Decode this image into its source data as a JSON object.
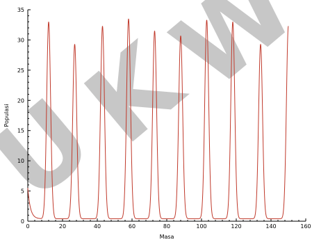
{
  "chart_data": {
    "type": "line",
    "xlabel": "Masa",
    "ylabel": "Populasi",
    "xlim": [
      0,
      160
    ],
    "ylim": [
      0,
      35
    ],
    "xticks": [
      0,
      20,
      40,
      60,
      80,
      100,
      120,
      140,
      160
    ],
    "yticks": [
      0,
      5,
      10,
      15,
      20,
      25,
      30,
      35
    ],
    "grid": false,
    "legend": "none",
    "series": [
      {
        "color": "#c0392b",
        "x_range": [
          0,
          150
        ],
        "start_value": 5.5,
        "baseline": 0.4,
        "peaks": [
          {
            "x": 12,
            "y": 33.0
          },
          {
            "x": 27,
            "y": 29.3
          },
          {
            "x": 43,
            "y": 32.3
          },
          {
            "x": 58,
            "y": 33.5
          },
          {
            "x": 73,
            "y": 31.5
          },
          {
            "x": 88,
            "y": 30.7
          },
          {
            "x": 103,
            "y": 33.3
          },
          {
            "x": 118,
            "y": 33.0
          },
          {
            "x": 134,
            "y": 29.3
          },
          {
            "x": 150,
            "y": 32.3
          }
        ]
      }
    ]
  },
  "watermark": {
    "text": "UKW",
    "color": "#9a9a9a"
  }
}
